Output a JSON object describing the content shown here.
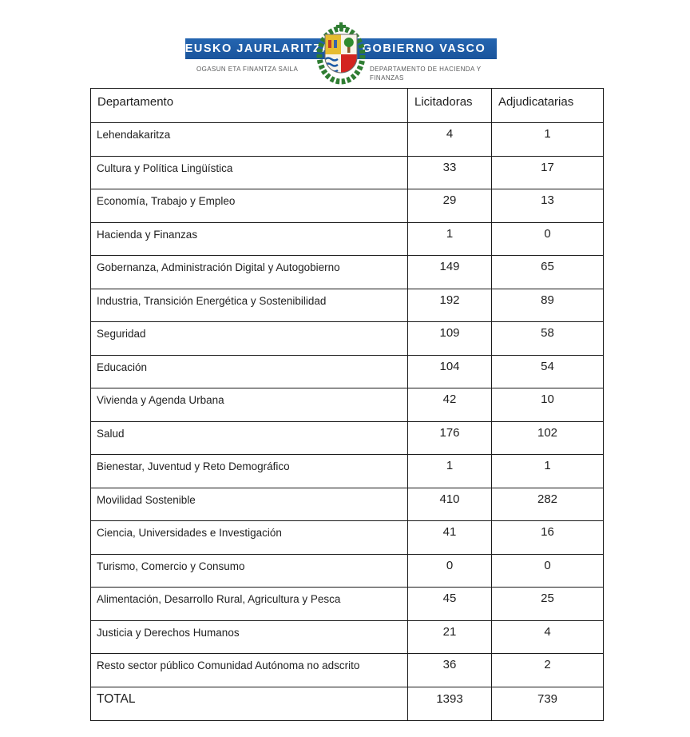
{
  "logo": {
    "basque_name": "EUSKO JAURLARITZA",
    "spanish_name": "GOBIERNO VASCO",
    "basque_dept": "OGASUN ETA FINANTZA SAILA",
    "spanish_dept_line1": "DEPARTAMENTO DE HACIENDA Y",
    "spanish_dept_line2": "FINANZAS",
    "bar_color": "#1c5aa5",
    "subtitle_color": "#58595a",
    "coat_of_arms": "basque-coat-of-arms"
  },
  "table": {
    "columns": {
      "department": "Departamento",
      "bidders": "Licitadoras",
      "awardees": "Adjudicatarias"
    },
    "rows": [
      {
        "departamento": "Lehendakaritza",
        "licitadoras": 4,
        "adjudicatarias": 1
      },
      {
        "departamento": "Cultura y Política Lingüística",
        "licitadoras": 33,
        "adjudicatarias": 17
      },
      {
        "departamento": "Economía, Trabajo y Empleo",
        "licitadoras": 29,
        "adjudicatarias": 13
      },
      {
        "departamento": "Hacienda y Finanzas",
        "licitadoras": 1,
        "adjudicatarias": 0
      },
      {
        "departamento": "Gobernanza, Administración Digital y Autogobierno",
        "licitadoras": 149,
        "adjudicatarias": 65
      },
      {
        "departamento": "Industria, Transición Energética y Sostenibilidad",
        "licitadoras": 192,
        "adjudicatarias": 89
      },
      {
        "departamento": "Seguridad",
        "licitadoras": 109,
        "adjudicatarias": 58
      },
      {
        "departamento": "Educación",
        "licitadoras": 104,
        "adjudicatarias": 54
      },
      {
        "departamento": "Vivienda y Agenda Urbana",
        "licitadoras": 42,
        "adjudicatarias": 10
      },
      {
        "departamento": "Salud",
        "licitadoras": 176,
        "adjudicatarias": 102
      },
      {
        "departamento": "Bienestar, Juventud y Reto Demográfico",
        "licitadoras": 1,
        "adjudicatarias": 1
      },
      {
        "departamento": "Movilidad Sostenible",
        "licitadoras": 410,
        "adjudicatarias": 282
      },
      {
        "departamento": "Ciencia, Universidades e Investigación",
        "licitadoras": 41,
        "adjudicatarias": 16
      },
      {
        "departamento": "Turismo, Comercio y Consumo",
        "licitadoras": 0,
        "adjudicatarias": 0
      },
      {
        "departamento": "Alimentación, Desarrollo Rural, Agricultura y Pesca",
        "licitadoras": 45,
        "adjudicatarias": 25
      },
      {
        "departamento": "Justicia y Derechos Humanos",
        "licitadoras": 21,
        "adjudicatarias": 4
      },
      {
        "departamento": "Resto sector público Comunidad Autónoma no adscrito",
        "licitadoras": 36,
        "adjudicatarias": 2
      }
    ],
    "total_row": {
      "label": "TOTAL",
      "licitadoras": 1393,
      "adjudicatarias": 739
    }
  }
}
